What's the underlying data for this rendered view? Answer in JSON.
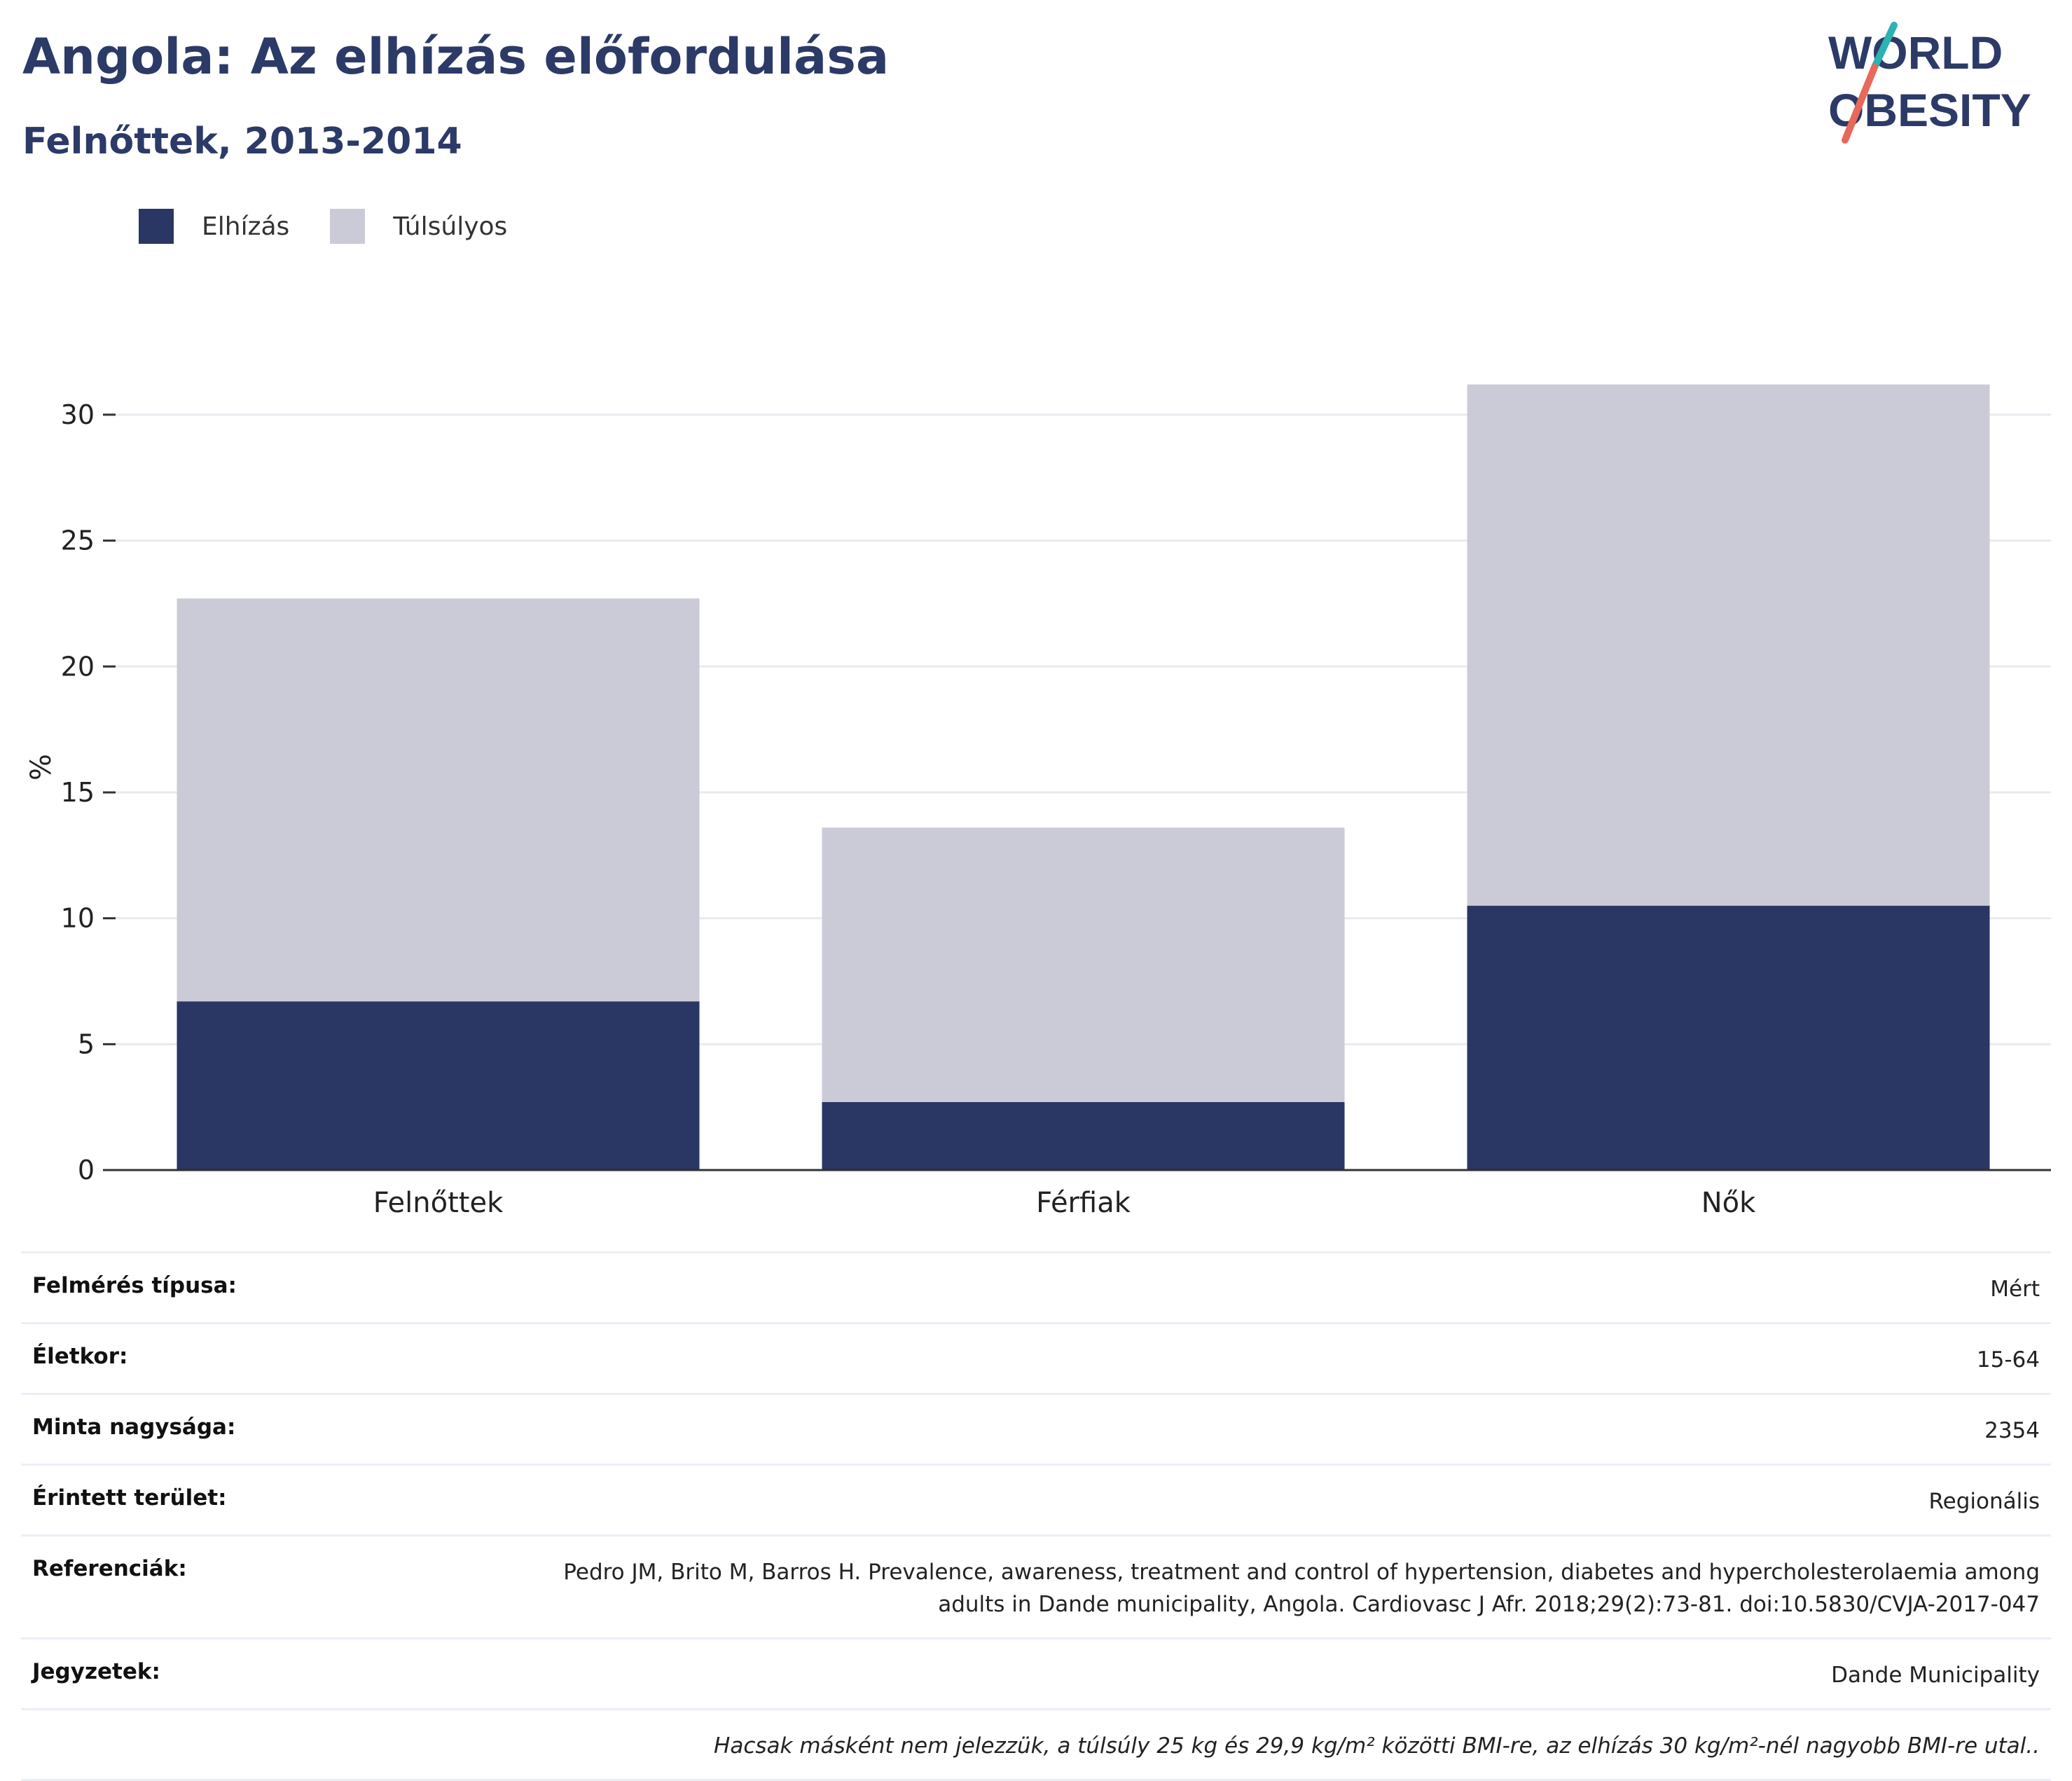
{
  "header": {
    "title": "Angola: Az elhízás előfordulása",
    "subtitle": "Felnőttek, 2013-2014"
  },
  "logo": {
    "line1": "WORLD",
    "line2": "OBESITY",
    "colors": {
      "text": "#2c3a67",
      "slash_top": "#2ab3b1",
      "slash_bottom": "#e8685a"
    }
  },
  "legend": {
    "items": [
      {
        "label": "Elhízás",
        "color": "#2a3663"
      },
      {
        "label": "Túlsúlyos",
        "color": "#cacbd7"
      }
    ]
  },
  "chart_data": {
    "type": "bar",
    "stacked": true,
    "categories": [
      "Felnőttek",
      "Férfiak",
      "Nők"
    ],
    "series": [
      {
        "name": "Elhízás",
        "values": [
          6.7,
          2.7,
          10.5
        ],
        "color": "#2a3663"
      },
      {
        "name": "Túlsúlyos",
        "values": [
          16.0,
          10.9,
          20.7
        ],
        "color": "#cacbd7"
      }
    ],
    "ylabel": "%",
    "ylim": [
      0,
      32
    ],
    "yticks": [
      0,
      5,
      10,
      15,
      20,
      25,
      30
    ],
    "grid": true,
    "legend_position": "top-left"
  },
  "info": {
    "rows": [
      {
        "key": "Felmérés típusa:",
        "value": "Mért"
      },
      {
        "key": "Életkor:",
        "value": "15-64"
      },
      {
        "key": "Minta nagysága:",
        "value": "2354"
      },
      {
        "key": "Érintett terület:",
        "value": "Regionális"
      },
      {
        "key": "Referenciák:",
        "value": "Pedro JM, Brito M, Barros H. Prevalence, awareness, treatment and control of hypertension, diabetes and hypercholesterolaemia among adults in Dande municipality, Angola. Cardiovasc J Afr. 2018;29(2):73-81. doi:10.5830/CVJA-2017-047"
      },
      {
        "key": "Jegyzetek:",
        "value": "Dande Municipality"
      }
    ],
    "footnote": "Hacsak másként nem jelezzük, a túlsúly 25 kg és 29,9 kg/m² közötti BMI-re, az elhízás 30 kg/m²-nél nagyobb BMI-re utal.."
  }
}
